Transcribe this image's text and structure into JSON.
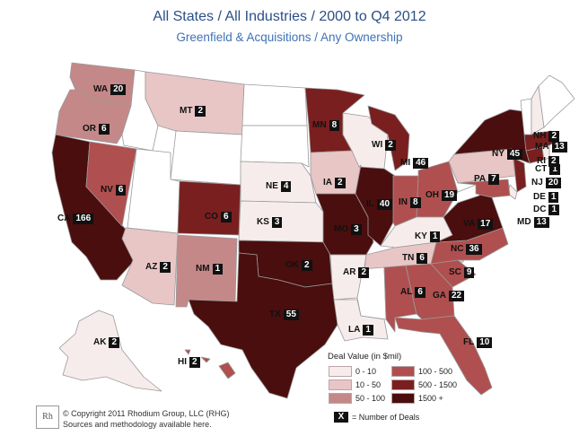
{
  "header": {
    "title": "All States / All Industries / 2000 to Q4 2012",
    "subtitle": "Greenfield & Acquisitions / Any Ownership"
  },
  "colors": {
    "0-10": "#f7ecec",
    "10-50": "#e8c6c5",
    "50-100": "#c58888",
    "100-500": "#b04f4f",
    "500-1500": "#7a1f1f",
    "1500+": "#4a0e0e",
    "none": "#ffffff",
    "border": "#9a9a9a",
    "count_bg": "#111111"
  },
  "states": [
    {
      "abbr": "WA",
      "deals": "20",
      "bin": "50-100"
    },
    {
      "abbr": "OR",
      "deals": "6",
      "bin": "50-100"
    },
    {
      "abbr": "CA",
      "deals": "166",
      "bin": "1500+"
    },
    {
      "abbr": "NV",
      "deals": "6",
      "bin": "100-500"
    },
    {
      "abbr": "AZ",
      "deals": "2",
      "bin": "10-50"
    },
    {
      "abbr": "MT",
      "deals": "2",
      "bin": "10-50"
    },
    {
      "abbr": "CO",
      "deals": "6",
      "bin": "500-1500"
    },
    {
      "abbr": "NM",
      "deals": "1",
      "bin": "50-100"
    },
    {
      "abbr": "NE",
      "deals": "4",
      "bin": "0-10"
    },
    {
      "abbr": "KS",
      "deals": "3",
      "bin": "0-10"
    },
    {
      "abbr": "OK",
      "deals": "2",
      "bin": "1500+"
    },
    {
      "abbr": "TX",
      "deals": "55",
      "bin": "1500+"
    },
    {
      "abbr": "MN",
      "deals": "8",
      "bin": "500-1500"
    },
    {
      "abbr": "IA",
      "deals": "2",
      "bin": "10-50"
    },
    {
      "abbr": "MO",
      "deals": "3",
      "bin": "1500+"
    },
    {
      "abbr": "AR",
      "deals": "2",
      "bin": "0-10"
    },
    {
      "abbr": "LA",
      "deals": "1",
      "bin": "0-10"
    },
    {
      "abbr": "WI",
      "deals": "2",
      "bin": "0-10"
    },
    {
      "abbr": "IL",
      "deals": "40",
      "bin": "1500+"
    },
    {
      "abbr": "MI",
      "deals": "46",
      "bin": "500-1500"
    },
    {
      "abbr": "IN",
      "deals": "8",
      "bin": "100-500"
    },
    {
      "abbr": "OH",
      "deals": "19",
      "bin": "100-500"
    },
    {
      "abbr": "KY",
      "deals": "1",
      "bin": "0-10"
    },
    {
      "abbr": "TN",
      "deals": "6",
      "bin": "10-50"
    },
    {
      "abbr": "AL",
      "deals": "6",
      "bin": "100-500"
    },
    {
      "abbr": "GA",
      "deals": "22",
      "bin": "100-500"
    },
    {
      "abbr": "FL",
      "deals": "10",
      "bin": "100-500"
    },
    {
      "abbr": "SC",
      "deals": "9",
      "bin": "100-500"
    },
    {
      "abbr": "NC",
      "deals": "36",
      "bin": "100-500"
    },
    {
      "abbr": "VA",
      "deals": "17",
      "bin": "1500+"
    },
    {
      "abbr": "PA",
      "deals": "7",
      "bin": "10-50"
    },
    {
      "abbr": "NY",
      "deals": "45",
      "bin": "1500+"
    },
    {
      "abbr": "NJ",
      "deals": "20",
      "bin": "500-1500"
    },
    {
      "abbr": "DE",
      "deals": "1",
      "bin": "0-10"
    },
    {
      "abbr": "DC",
      "deals": "1",
      "bin": "0-10"
    },
    {
      "abbr": "MD",
      "deals": "13",
      "bin": "100-500"
    },
    {
      "abbr": "CT",
      "deals": "1",
      "bin": "500-1500"
    },
    {
      "abbr": "RI",
      "deals": "2",
      "bin": "0-10"
    },
    {
      "abbr": "MA",
      "deals": "13",
      "bin": "500-1500"
    },
    {
      "abbr": "NH",
      "deals": "2",
      "bin": "0-10"
    },
    {
      "abbr": "AK",
      "deals": "2",
      "bin": "0-10"
    },
    {
      "abbr": "HI",
      "deals": "2",
      "bin": "100-500"
    }
  ],
  "legend": {
    "title": "Deal Value (in $mil)",
    "items": [
      {
        "key": "0-10",
        "label": "0 - 10"
      },
      {
        "key": "10-50",
        "label": "10 - 50"
      },
      {
        "key": "50-100",
        "label": "50 - 100"
      },
      {
        "key": "100-500",
        "label": "100 - 500"
      },
      {
        "key": "500-1500",
        "label": "500 - 1500"
      },
      {
        "key": "1500+",
        "label": "1500 +"
      }
    ],
    "count_marker": "X",
    "count_note": "= Number of Deals"
  },
  "footer": {
    "logo": "Rh",
    "copyright": "© Copyright 2011 Rhodium Group, LLC (RHG)",
    "sources": "Sources and methodology available here."
  }
}
